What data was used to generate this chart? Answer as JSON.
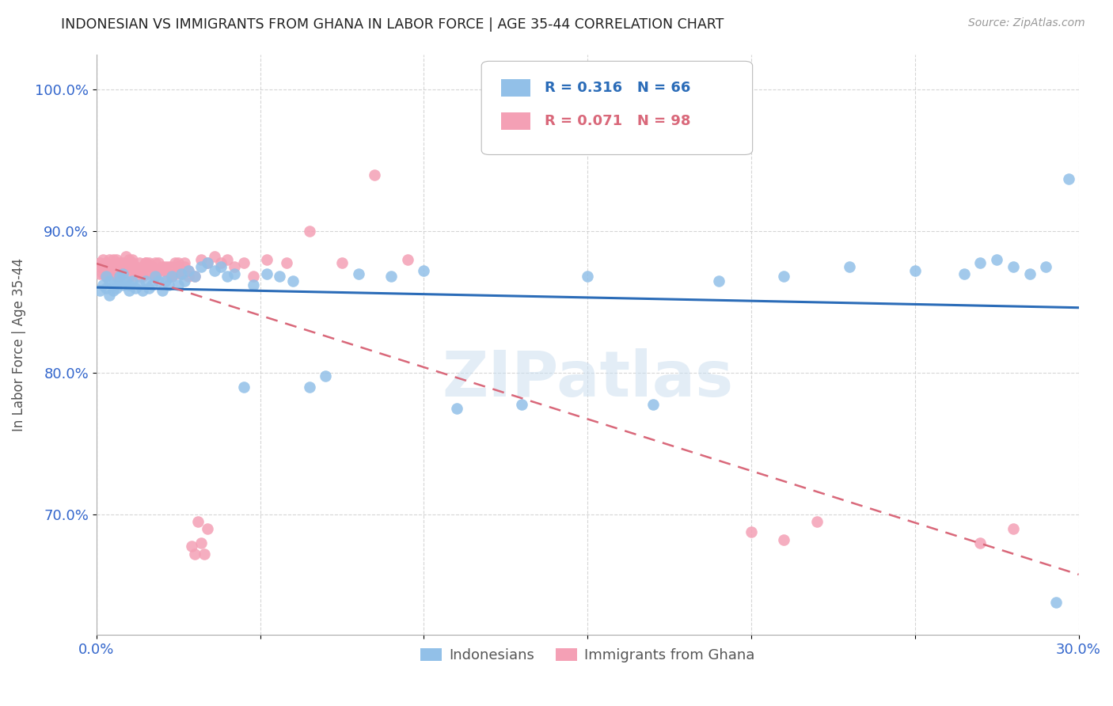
{
  "title": "INDONESIAN VS IMMIGRANTS FROM GHANA IN LABOR FORCE | AGE 35-44 CORRELATION CHART",
  "source": "Source: ZipAtlas.com",
  "ylabel": "In Labor Force | Age 35-44",
  "xlim": [
    0.0,
    0.3
  ],
  "ylim": [
    0.615,
    1.025
  ],
  "xticks": [
    0.0,
    0.05,
    0.1,
    0.15,
    0.2,
    0.25,
    0.3
  ],
  "xticklabels": [
    "0.0%",
    "",
    "",
    "",
    "",
    "",
    "30.0%"
  ],
  "yticks": [
    0.7,
    0.8,
    0.9,
    1.0
  ],
  "yticklabels": [
    "70.0%",
    "80.0%",
    "90.0%",
    "100.0%"
  ],
  "blue_color": "#92C0E8",
  "pink_color": "#F4A0B5",
  "blue_line_color": "#2B6CB8",
  "pink_line_color": "#D9687A",
  "blue_r": 0.316,
  "blue_n": 66,
  "pink_r": 0.071,
  "pink_n": 98,
  "legend_label_blue": "Indonesians",
  "legend_label_pink": "Immigrants from Ghana",
  "watermark": "ZIPatlas",
  "title_color": "#222222",
  "axis_label_color": "#3366CC",
  "grid_color": "#CCCCCC",
  "blue_x": [
    0.001,
    0.002,
    0.003,
    0.003,
    0.004,
    0.004,
    0.005,
    0.005,
    0.006,
    0.007,
    0.007,
    0.008,
    0.008,
    0.009,
    0.01,
    0.01,
    0.011,
    0.012,
    0.013,
    0.014,
    0.015,
    0.016,
    0.017,
    0.018,
    0.019,
    0.02,
    0.021,
    0.022,
    0.023,
    0.025,
    0.026,
    0.027,
    0.028,
    0.03,
    0.032,
    0.034,
    0.036,
    0.038,
    0.04,
    0.042,
    0.045,
    0.048,
    0.052,
    0.056,
    0.06,
    0.065,
    0.07,
    0.08,
    0.09,
    0.1,
    0.11,
    0.13,
    0.15,
    0.17,
    0.19,
    0.21,
    0.23,
    0.25,
    0.265,
    0.27,
    0.275,
    0.28,
    0.285,
    0.29,
    0.293,
    0.297
  ],
  "blue_y": [
    0.858,
    0.862,
    0.86,
    0.868,
    0.855,
    0.865,
    0.858,
    0.862,
    0.86,
    0.865,
    0.868,
    0.862,
    0.87,
    0.865,
    0.858,
    0.862,
    0.865,
    0.86,
    0.862,
    0.858,
    0.865,
    0.86,
    0.862,
    0.868,
    0.865,
    0.858,
    0.865,
    0.862,
    0.868,
    0.862,
    0.87,
    0.865,
    0.872,
    0.868,
    0.875,
    0.878,
    0.872,
    0.875,
    0.868,
    0.87,
    0.79,
    0.862,
    0.87,
    0.868,
    0.865,
    0.79,
    0.798,
    0.87,
    0.868,
    0.872,
    0.775,
    0.778,
    0.868,
    0.778,
    0.865,
    0.868,
    0.875,
    0.872,
    0.87,
    0.878,
    0.88,
    0.875,
    0.87,
    0.875,
    0.638,
    0.937
  ],
  "pink_x": [
    0.001,
    0.001,
    0.001,
    0.002,
    0.002,
    0.002,
    0.003,
    0.003,
    0.003,
    0.004,
    0.004,
    0.004,
    0.005,
    0.005,
    0.005,
    0.006,
    0.006,
    0.006,
    0.007,
    0.007,
    0.007,
    0.008,
    0.008,
    0.008,
    0.009,
    0.009,
    0.01,
    0.01,
    0.01,
    0.011,
    0.011,
    0.012,
    0.012,
    0.013,
    0.013,
    0.014,
    0.014,
    0.015,
    0.015,
    0.016,
    0.016,
    0.017,
    0.018,
    0.018,
    0.019,
    0.02,
    0.021,
    0.022,
    0.023,
    0.024,
    0.025,
    0.026,
    0.027,
    0.028,
    0.03,
    0.032,
    0.034,
    0.036,
    0.038,
    0.04,
    0.042,
    0.045,
    0.048,
    0.052,
    0.058,
    0.065,
    0.075,
    0.085,
    0.095,
    0.01,
    0.011,
    0.012,
    0.013,
    0.015,
    0.016,
    0.017,
    0.018,
    0.019,
    0.02,
    0.021,
    0.022,
    0.023,
    0.024,
    0.025,
    0.026,
    0.027,
    0.028,
    0.029,
    0.03,
    0.031,
    0.032,
    0.033,
    0.034,
    0.2,
    0.21,
    0.22,
    0.27,
    0.28
  ],
  "pink_y": [
    0.87,
    0.875,
    0.878,
    0.87,
    0.88,
    0.875,
    0.875,
    0.868,
    0.878,
    0.872,
    0.88,
    0.875,
    0.87,
    0.88,
    0.875,
    0.88,
    0.875,
    0.868,
    0.878,
    0.872,
    0.868,
    0.878,
    0.872,
    0.875,
    0.882,
    0.875,
    0.88,
    0.875,
    0.868,
    0.878,
    0.872,
    0.875,
    0.868,
    0.878,
    0.872,
    0.875,
    0.868,
    0.878,
    0.875,
    0.87,
    0.878,
    0.875,
    0.868,
    0.878,
    0.872,
    0.875,
    0.872,
    0.875,
    0.868,
    0.878,
    0.875,
    0.87,
    0.878,
    0.872,
    0.868,
    0.88,
    0.878,
    0.882,
    0.878,
    0.88,
    0.875,
    0.878,
    0.868,
    0.88,
    0.878,
    0.9,
    0.878,
    0.94,
    0.88,
    0.878,
    0.88,
    0.875,
    0.868,
    0.878,
    0.872,
    0.875,
    0.87,
    0.878,
    0.872,
    0.875,
    0.868,
    0.875,
    0.87,
    0.878,
    0.872,
    0.875,
    0.868,
    0.678,
    0.672,
    0.695,
    0.68,
    0.672,
    0.69,
    0.688,
    0.682,
    0.695,
    0.68,
    0.69
  ]
}
